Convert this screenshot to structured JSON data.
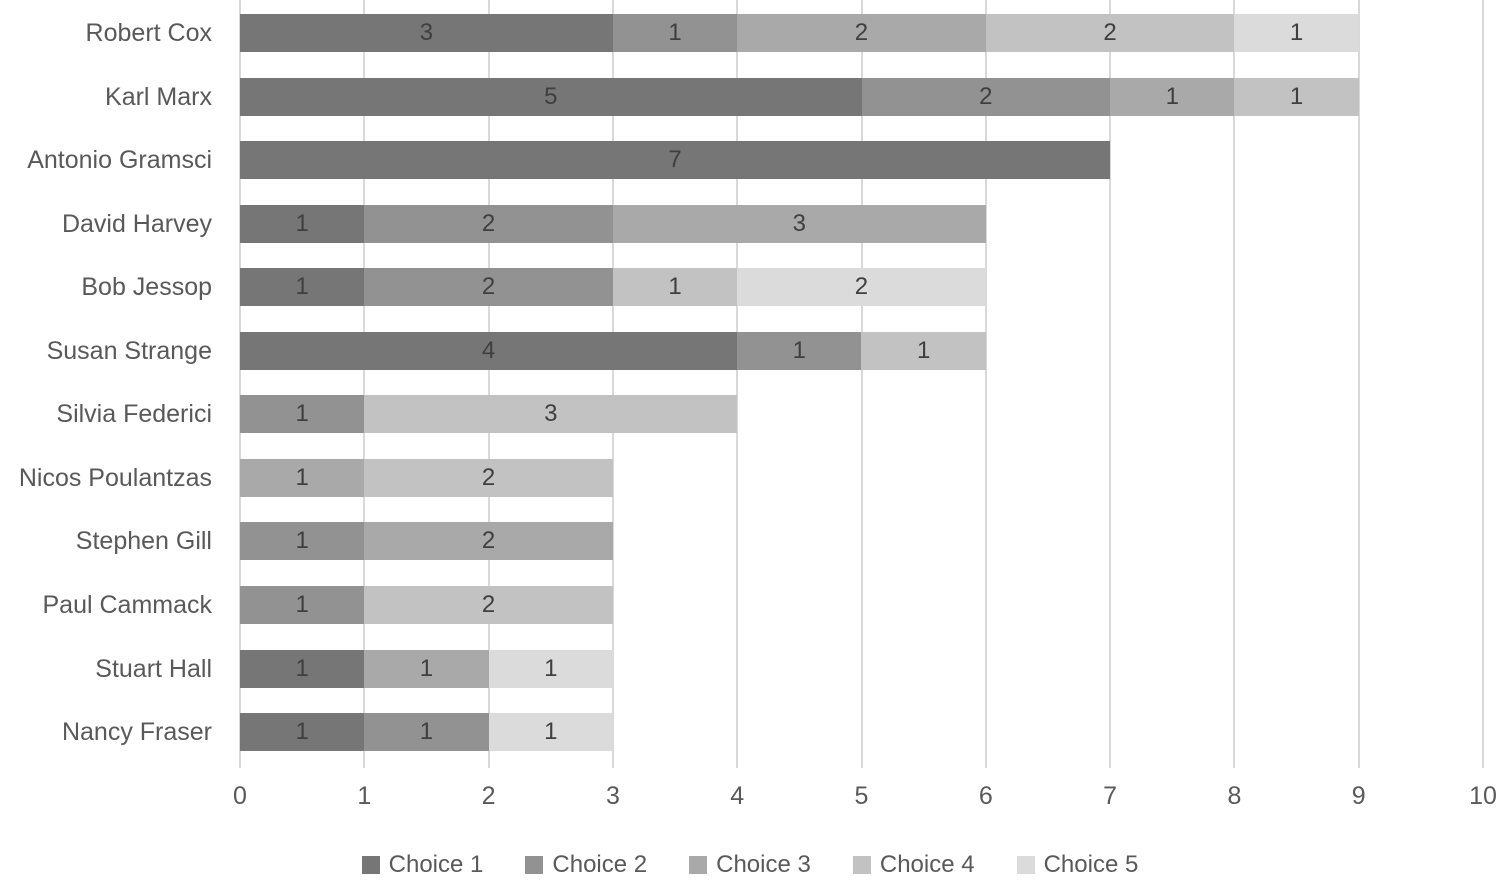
{
  "chart_data": {
    "type": "bar",
    "orientation": "horizontal",
    "stacked": true,
    "title": "",
    "xlabel": "",
    "ylabel": "",
    "grid": "vertical-only",
    "gridline_color": "#d9d9d9",
    "legend_position": "bottom",
    "show_data_labels": true,
    "axis_text_color": "#595959",
    "data_label_color": "#3f3f3f",
    "xlim": [
      0,
      10
    ],
    "x_ticks": [
      0,
      1,
      2,
      3,
      4,
      5,
      6,
      7,
      8,
      9,
      10
    ],
    "categories": [
      "Robert Cox",
      "Karl Marx",
      "Antonio Gramsci",
      "David Harvey",
      "Bob Jessop",
      "Susan Strange",
      "Silvia Federici",
      "Nicos Poulantzas",
      "Stephen Gill",
      "Paul Cammack",
      "Stuart Hall",
      "Nancy Fraser"
    ],
    "series": [
      {
        "name": "Choice 1",
        "color": "#767676",
        "values": [
          3,
          5,
          7,
          1,
          1,
          4,
          0,
          0,
          0,
          0,
          1,
          1
        ]
      },
      {
        "name": "Choice 2",
        "color": "#929292",
        "values": [
          1,
          2,
          0,
          2,
          2,
          1,
          1,
          0,
          1,
          1,
          0,
          1
        ]
      },
      {
        "name": "Choice 3",
        "color": "#a9a9a9",
        "values": [
          2,
          1,
          0,
          3,
          0,
          0,
          0,
          1,
          2,
          0,
          1,
          0
        ]
      },
      {
        "name": "Choice 4",
        "color": "#c2c2c2",
        "values": [
          2,
          1,
          0,
          0,
          1,
          1,
          3,
          2,
          0,
          2,
          0,
          0
        ]
      },
      {
        "name": "Choice 5",
        "color": "#dbdbdb",
        "values": [
          1,
          0,
          0,
          0,
          2,
          0,
          0,
          0,
          0,
          0,
          1,
          1
        ]
      }
    ],
    "totals": [
      9,
      9,
      7,
      6,
      6,
      6,
      4,
      3,
      3,
      3,
      3,
      3
    ]
  }
}
